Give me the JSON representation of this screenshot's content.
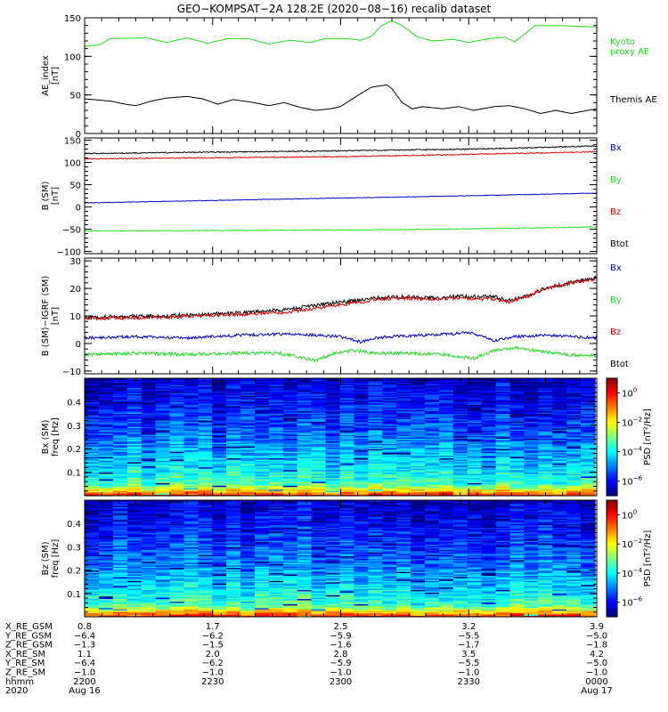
{
  "title": "GEO−KOMPSAT−2A 128.2E (2020−08−16) recalib dataset",
  "colors": {
    "black": "#000000",
    "green": "#22dd22",
    "blue": "#0000cc",
    "red": "#dd0000"
  },
  "chart_data": [
    {
      "type": "line",
      "panel": "ae",
      "ylabel_lines": [
        "AE_index",
        "[nT]"
      ],
      "ylim": [
        0,
        150
      ],
      "yticks": [
        0,
        50,
        100,
        150
      ],
      "legend": [
        {
          "lines": [
            "Kyoto",
            "proxy AE"
          ],
          "color": "green"
        },
        {
          "lines": [
            "Themis AE"
          ],
          "color": "black"
        }
      ],
      "series": [
        {
          "name": "Kyoto proxy AE",
          "color": "green",
          "values": [
            [
              0,
              113
            ],
            [
              0.03,
              115
            ],
            [
              0.05,
              123
            ],
            [
              0.12,
              124
            ],
            [
              0.16,
              118
            ],
            [
              0.2,
              124
            ],
            [
              0.24,
              117
            ],
            [
              0.28,
              123
            ],
            [
              0.32,
              123
            ],
            [
              0.36,
              116
            ],
            [
              0.4,
              121
            ],
            [
              0.44,
              118
            ],
            [
              0.47,
              123
            ],
            [
              0.51,
              123
            ],
            [
              0.54,
              121
            ],
            [
              0.56,
              126
            ],
            [
              0.58,
              140
            ],
            [
              0.6,
              146
            ],
            [
              0.62,
              140
            ],
            [
              0.65,
              125
            ],
            [
              0.68,
              120
            ],
            [
              0.72,
              122
            ],
            [
              0.75,
              118
            ],
            [
              0.79,
              123
            ],
            [
              0.82,
              125
            ],
            [
              0.84,
              119
            ],
            [
              0.88,
              140
            ],
            [
              0.93,
              140
            ],
            [
              0.96,
              139
            ],
            [
              1,
              138
            ]
          ]
        },
        {
          "name": "Themis AE",
          "color": "black",
          "values": [
            [
              0,
              45
            ],
            [
              0.05,
              42
            ],
            [
              0.08,
              38
            ],
            [
              0.1,
              36
            ],
            [
              0.13,
              42
            ],
            [
              0.16,
              46
            ],
            [
              0.2,
              48
            ],
            [
              0.23,
              45
            ],
            [
              0.26,
              38
            ],
            [
              0.29,
              44
            ],
            [
              0.33,
              40
            ],
            [
              0.36,
              36
            ],
            [
              0.39,
              40
            ],
            [
              0.42,
              34
            ],
            [
              0.45,
              30
            ],
            [
              0.48,
              32
            ],
            [
              0.5,
              35
            ],
            [
              0.53,
              48
            ],
            [
              0.56,
              60
            ],
            [
              0.59,
              63
            ],
            [
              0.6,
              58
            ],
            [
              0.62,
              40
            ],
            [
              0.64,
              32
            ],
            [
              0.66,
              35
            ],
            [
              0.7,
              32
            ],
            [
              0.73,
              35
            ],
            [
              0.76,
              30
            ],
            [
              0.8,
              35
            ],
            [
              0.83,
              36
            ],
            [
              0.86,
              32
            ],
            [
              0.89,
              26
            ],
            [
              0.92,
              30
            ],
            [
              0.95,
              26
            ],
            [
              1,
              32
            ]
          ]
        }
      ]
    },
    {
      "type": "line",
      "panel": "bsm",
      "ylabel_lines": [
        "B (SM)",
        "[nT]"
      ],
      "ylim": [
        -105,
        155
      ],
      "yticks": [
        -100,
        -50,
        0,
        50,
        100,
        150
      ],
      "legend": [
        {
          "lines": [
            "Bx"
          ],
          "color": "blue"
        },
        {
          "lines": [
            "By"
          ],
          "color": "green"
        },
        {
          "lines": [
            "Bz"
          ],
          "color": "red"
        },
        {
          "lines": [
            "Btot"
          ],
          "color": "black"
        }
      ],
      "series": [
        {
          "name": "Btot",
          "color": "black",
          "values": [
            [
              0,
              120
            ],
            [
              0.5,
              126
            ],
            [
              0.7,
              129
            ],
            [
              0.8,
              131
            ],
            [
              1,
              137
            ]
          ],
          "noise": 1.2
        },
        {
          "name": "Bz",
          "color": "red",
          "values": [
            [
              0,
              108
            ],
            [
              0.5,
              113
            ],
            [
              0.7,
              117
            ],
            [
              1,
              124
            ]
          ],
          "noise": 1.0
        },
        {
          "name": "Bx",
          "color": "blue",
          "values": [
            [
              0,
              9
            ],
            [
              0.5,
              20
            ],
            [
              0.7,
              24
            ],
            [
              1,
              31
            ]
          ],
          "noise": 0.6
        },
        {
          "name": "By",
          "color": "green",
          "values": [
            [
              0,
              -54
            ],
            [
              0.5,
              -52
            ],
            [
              0.7,
              -50
            ],
            [
              1,
              -45
            ]
          ],
          "noise": 0.8
        }
      ]
    },
    {
      "type": "line",
      "panel": "bres",
      "ylabel_lines": [
        "B (SM)−IGRF (SM)",
        "[nT]"
      ],
      "ylim": [
        -11,
        31
      ],
      "yticks": [
        -10,
        0,
        10,
        20,
        30
      ],
      "legend": [
        {
          "lines": [
            "Bx"
          ],
          "color": "blue"
        },
        {
          "lines": [
            "By"
          ],
          "color": "green"
        },
        {
          "lines": [
            "Bz"
          ],
          "color": "red"
        },
        {
          "lines": [
            "Btot"
          ],
          "color": "black"
        }
      ],
      "series": [
        {
          "name": "Btot",
          "color": "black",
          "values": [
            [
              0,
              9.5
            ],
            [
              0.15,
              10
            ],
            [
              0.3,
              11
            ],
            [
              0.4,
              12.5
            ],
            [
              0.5,
              15
            ],
            [
              0.57,
              16.5
            ],
            [
              0.62,
              17
            ],
            [
              0.68,
              16.5
            ],
            [
              0.72,
              17
            ],
            [
              0.8,
              17
            ],
            [
              0.83,
              15.5
            ],
            [
              0.86,
              17
            ],
            [
              0.9,
              20
            ],
            [
              0.95,
              22
            ],
            [
              1,
              24
            ]
          ],
          "noise": 0.7
        },
        {
          "name": "Bz",
          "color": "red",
          "values": [
            [
              0,
              9
            ],
            [
              0.15,
              9.5
            ],
            [
              0.3,
              10.5
            ],
            [
              0.4,
              11.5
            ],
            [
              0.5,
              14
            ],
            [
              0.57,
              16
            ],
            [
              0.62,
              16.5
            ],
            [
              0.68,
              16
            ],
            [
              0.72,
              16.5
            ],
            [
              0.8,
              16
            ],
            [
              0.83,
              15
            ],
            [
              0.86,
              17
            ],
            [
              0.9,
              20
            ],
            [
              0.95,
              22
            ],
            [
              1,
              23.5
            ]
          ],
          "noise": 0.6
        },
        {
          "name": "Bx",
          "color": "blue",
          "values": [
            [
              0,
              2
            ],
            [
              0.1,
              2.5
            ],
            [
              0.2,
              2
            ],
            [
              0.3,
              3
            ],
            [
              0.4,
              3.5
            ],
            [
              0.45,
              3
            ],
            [
              0.5,
              2.5
            ],
            [
              0.52,
              1.5
            ],
            [
              0.54,
              0.5
            ],
            [
              0.57,
              2
            ],
            [
              0.6,
              2.5
            ],
            [
              0.66,
              3
            ],
            [
              0.72,
              3.5
            ],
            [
              0.75,
              4
            ],
            [
              0.78,
              2.5
            ],
            [
              0.8,
              1
            ],
            [
              0.84,
              2.5
            ],
            [
              0.9,
              3
            ],
            [
              1,
              2
            ]
          ],
          "noise": 0.5
        },
        {
          "name": "By",
          "color": "green",
          "values": [
            [
              0,
              -4
            ],
            [
              0.1,
              -3.5
            ],
            [
              0.2,
              -4
            ],
            [
              0.3,
              -3.5
            ],
            [
              0.38,
              -3.5
            ],
            [
              0.42,
              -5
            ],
            [
              0.45,
              -6
            ],
            [
              0.49,
              -3.5
            ],
            [
              0.53,
              -2.5
            ],
            [
              0.56,
              -3.5
            ],
            [
              0.62,
              -3.5
            ],
            [
              0.7,
              -4
            ],
            [
              0.74,
              -5
            ],
            [
              0.76,
              -5.5
            ],
            [
              0.8,
              -2.5
            ],
            [
              0.84,
              -1.5
            ],
            [
              0.88,
              -2.5
            ],
            [
              0.94,
              -4
            ],
            [
              1,
              -4.5
            ]
          ],
          "noise": 0.6
        }
      ]
    },
    {
      "type": "heatmap",
      "panel": "bxpsd",
      "ylabel_lines": [
        "Bx (SM)",
        "freq [Hz]"
      ],
      "ylim": [
        0,
        0.5
      ],
      "yticks": [
        0.1,
        0.2,
        0.3,
        0.4
      ],
      "seed": 7,
      "colorbar": {
        "label": "PSD [nT²/Hz]",
        "ticks": [
          0,
          -2,
          -4,
          -6
        ],
        "range": [
          -7,
          1
        ]
      }
    },
    {
      "type": "heatmap",
      "panel": "bzpsd",
      "ylabel_lines": [
        "Bz (SM)",
        "freq [Hz]"
      ],
      "ylim": [
        0,
        0.5
      ],
      "yticks": [
        0.1,
        0.2,
        0.3,
        0.4
      ],
      "seed": 19,
      "colorbar": {
        "label": "PSD [nT²/Hz]",
        "ticks": [
          0,
          -2,
          -4,
          -6
        ],
        "range": [
          -7,
          1
        ]
      }
    }
  ],
  "xaxis": {
    "tick_positions": [
      0,
      0.2,
      0.4,
      0.6,
      0.8,
      1.0
    ],
    "major_positions": [
      0,
      0.25,
      0.5,
      0.75,
      1.0
    ],
    "row_labels": [
      "X_RE_GSM",
      "Y_RE_GSM",
      "Z_RE_GSM",
      "X_RE_SM",
      "Y_RE_SM",
      "Z_RE_SM",
      "hhmm",
      "2020"
    ],
    "columns": [
      {
        "pos": 0,
        "values": [
          "0.8",
          "−6.4",
          "−1.3",
          "1.1",
          "−6.4",
          "−1.0",
          "2200",
          "Aug 16"
        ]
      },
      {
        "pos": 0.25,
        "values": [
          "1.7",
          "−6.2",
          "−1.5",
          "2.0",
          "−6.2",
          "−1.0",
          "2230",
          ""
        ]
      },
      {
        "pos": 0.5,
        "values": [
          "2.5",
          "−5.9",
          "−1.6",
          "2.8",
          "−5.9",
          "−1.0",
          "2300",
          ""
        ]
      },
      {
        "pos": 0.75,
        "values": [
          "3.2",
          "−5.5",
          "−1.7",
          "3.5",
          "−5.5",
          "−1.0",
          "2330",
          ""
        ]
      },
      {
        "pos": 1.0,
        "values": [
          "3.9",
          "−5.0",
          "−1.8",
          "4.2",
          "−5.0",
          "−1.0",
          "0000",
          "Aug 17"
        ]
      }
    ]
  }
}
